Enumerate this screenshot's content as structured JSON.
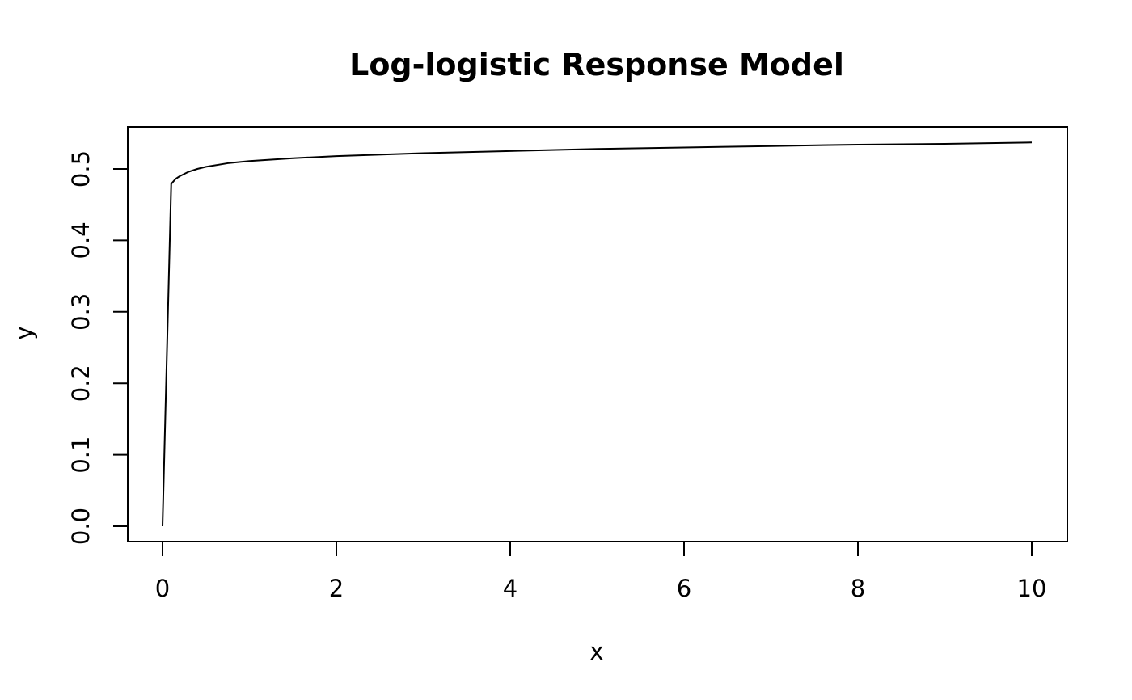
{
  "chart_data": {
    "type": "line",
    "title": "Log-logistic Response Model",
    "xlabel": "x",
    "ylabel": "y",
    "xlim": [
      0,
      10
    ],
    "ylim": [
      0,
      0.55
    ],
    "x_ticks": [
      "0",
      "2",
      "4",
      "6",
      "8",
      "10"
    ],
    "y_ticks": [
      "0.0",
      "0.1",
      "0.2",
      "0.3",
      "0.4",
      "0.5"
    ],
    "grid": false,
    "series": [
      {
        "color": "#000000",
        "x": [
          0,
          0.1,
          0.15,
          0.2,
          0.3,
          0.4,
          0.5,
          0.75,
          1.0,
          1.5,
          2.0,
          3.0,
          4.0,
          5.0,
          6.0,
          7.0,
          8.0,
          9.0,
          10.0
        ],
        "y": [
          0,
          0.479,
          0.486,
          0.49,
          0.496,
          0.5,
          0.503,
          0.508,
          0.511,
          0.515,
          0.518,
          0.522,
          0.525,
          0.528,
          0.53,
          0.532,
          0.534,
          0.535,
          0.537
        ]
      }
    ]
  }
}
